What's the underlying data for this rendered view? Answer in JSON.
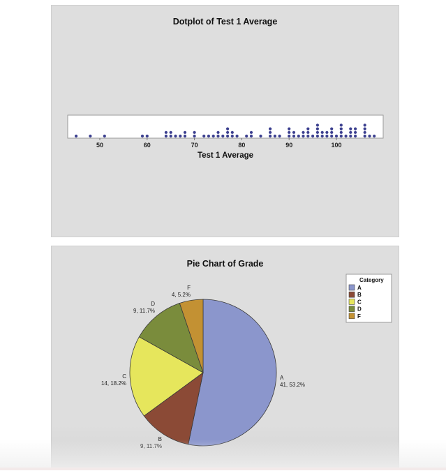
{
  "chart_data": [
    {
      "type": "dotplot",
      "title": "Dotplot of Test 1 Average",
      "xlabel": "Test 1 Average",
      "ylabel": "",
      "xticks": [
        50,
        60,
        70,
        80,
        90,
        100
      ],
      "xlim": [
        44,
        109
      ],
      "grid": false,
      "dot_color": "#3b3f8f",
      "points": [
        {
          "x": 45,
          "count": 1
        },
        {
          "x": 48,
          "count": 1
        },
        {
          "x": 51,
          "count": 1
        },
        {
          "x": 59,
          "count": 1
        },
        {
          "x": 60,
          "count": 1
        },
        {
          "x": 64,
          "count": 2
        },
        {
          "x": 65,
          "count": 2
        },
        {
          "x": 66,
          "count": 1
        },
        {
          "x": 67,
          "count": 1
        },
        {
          "x": 68,
          "count": 2
        },
        {
          "x": 70,
          "count": 2
        },
        {
          "x": 72,
          "count": 1
        },
        {
          "x": 73,
          "count": 1
        },
        {
          "x": 74,
          "count": 1
        },
        {
          "x": 75,
          "count": 2
        },
        {
          "x": 76,
          "count": 1
        },
        {
          "x": 77,
          "count": 3
        },
        {
          "x": 78,
          "count": 2
        },
        {
          "x": 79,
          "count": 1
        },
        {
          "x": 81,
          "count": 1
        },
        {
          "x": 82,
          "count": 2
        },
        {
          "x": 84,
          "count": 1
        },
        {
          "x": 86,
          "count": 3
        },
        {
          "x": 87,
          "count": 1
        },
        {
          "x": 88,
          "count": 1
        },
        {
          "x": 90,
          "count": 3
        },
        {
          "x": 91,
          "count": 2
        },
        {
          "x": 92,
          "count": 1
        },
        {
          "x": 93,
          "count": 2
        },
        {
          "x": 94,
          "count": 3
        },
        {
          "x": 95,
          "count": 1
        },
        {
          "x": 96,
          "count": 4
        },
        {
          "x": 97,
          "count": 2
        },
        {
          "x": 98,
          "count": 2
        },
        {
          "x": 99,
          "count": 3
        },
        {
          "x": 100,
          "count": 1
        },
        {
          "x": 101,
          "count": 4
        },
        {
          "x": 102,
          "count": 1
        },
        {
          "x": 103,
          "count": 3
        },
        {
          "x": 104,
          "count": 3
        },
        {
          "x": 106,
          "count": 4
        },
        {
          "x": 107,
          "count": 1
        },
        {
          "x": 108,
          "count": 1
        }
      ],
      "total": 77
    },
    {
      "type": "pie",
      "title": "Pie Chart of Grade",
      "legend_title": "Category",
      "legend_position": "right",
      "categories": [
        "A",
        "B",
        "C",
        "D",
        "F"
      ],
      "values": [
        41,
        9,
        14,
        9,
        4
      ],
      "percents": [
        "53.2%",
        "11.7%",
        "18.2%",
        "11.7%",
        "5.2%"
      ],
      "labels": [
        "41, 53.2%",
        "9, 11.7%",
        "14, 18.2%",
        "9, 11.7%",
        "4, 5.2%"
      ],
      "colors": [
        "#8b96cc",
        "#8b4a36",
        "#e6e65c",
        "#7a8c3c",
        "#c39133"
      ],
      "start_angle_deg": 0,
      "direction": "clockwise-from-top"
    }
  ],
  "dotplot": {
    "title": "Dotplot of Test 1 Average",
    "xlabel": "Test 1 Average",
    "ticks": [
      "50",
      "60",
      "70",
      "80",
      "90",
      "100"
    ]
  },
  "pie": {
    "title": "Pie Chart of Grade",
    "legend_title": "Category",
    "legend": [
      "A",
      "B",
      "C",
      "D",
      "F"
    ],
    "slice_labels": {
      "A": {
        "name": "A",
        "value": "41, 53.2%"
      },
      "B": {
        "name": "B",
        "value": "9, 11.7%"
      },
      "C": {
        "name": "C",
        "value": "14, 18.2%"
      },
      "D": {
        "name": "D",
        "value": "9, 11.7%"
      },
      "F": {
        "name": "F",
        "value": "4, 5.2%"
      }
    }
  }
}
